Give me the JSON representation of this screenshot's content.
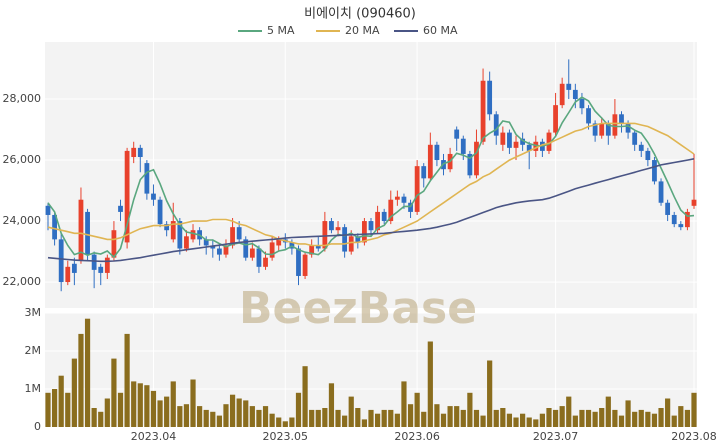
{
  "chart_data": [
    {
      "type": "candlestick",
      "title": "비에이치 (090460)",
      "watermark": "BeezBase",
      "up_color": "#e8412c",
      "down_color": "#2f6ec2",
      "open": [
        24500,
        24200,
        23400,
        22000,
        22600,
        22700,
        24300,
        22900,
        22500,
        22300,
        22800,
        24500,
        23300,
        26100,
        26400,
        25900,
        24900,
        24700,
        23900,
        23400,
        24000,
        23100,
        23400,
        23700,
        23400,
        23200,
        23100,
        22900,
        23200,
        23800,
        23400,
        22800,
        23100,
        22500,
        22800,
        23200,
        23400,
        23300,
        23100,
        22200,
        22900,
        23200,
        23100,
        24000,
        23700,
        23800,
        23000,
        23500,
        23300,
        24000,
        23700,
        24300,
        24000,
        24700,
        24800,
        24600,
        24300,
        25800,
        25400,
        26500,
        26000,
        25700,
        27000,
        26700,
        26200,
        25500,
        26600,
        28600,
        27500,
        26500,
        26900,
        26400,
        26700,
        26500,
        26300,
        26600,
        26300,
        26900,
        27800,
        28500,
        28300,
        28000,
        27700,
        27200,
        26800,
        27200,
        26800,
        27500,
        27200,
        26900,
        26500,
        26300,
        26000,
        25300,
        24600,
        24200,
        23900,
        23800,
        24500
      ],
      "high": [
        24600,
        24300,
        23600,
        22700,
        22800,
        25100,
        24400,
        23000,
        22600,
        22900,
        24000,
        24700,
        26400,
        26600,
        26500,
        26000,
        25200,
        24800,
        24000,
        24600,
        24100,
        23700,
        23900,
        23800,
        23500,
        23400,
        23200,
        23400,
        24100,
        24000,
        23500,
        23300,
        23200,
        23000,
        23500,
        23500,
        23600,
        23400,
        23200,
        23000,
        23400,
        23500,
        24300,
        24100,
        24000,
        23900,
        23700,
        23600,
        24100,
        24100,
        24500,
        24400,
        25000,
        25000,
        24900,
        24700,
        26000,
        25900,
        26900,
        26600,
        26200,
        26400,
        27100,
        26800,
        26300,
        27000,
        29000,
        28900,
        27600,
        27100,
        27000,
        26800,
        26900,
        26600,
        26800,
        26700,
        27000,
        28200,
        28700,
        29300,
        28500,
        28200,
        27800,
        27300,
        27400,
        27300,
        28000,
        27600,
        27300,
        27000,
        26600,
        26400,
        26100,
        25400,
        24700,
        24300,
        24000,
        24400,
        26200
      ],
      "low": [
        23700,
        23200,
        21700,
        21900,
        21900,
        22600,
        22700,
        21800,
        21900,
        22100,
        22700,
        24000,
        23100,
        25900,
        25600,
        24700,
        24500,
        23800,
        23500,
        23300,
        22900,
        23000,
        23300,
        23200,
        22900,
        22800,
        22700,
        22800,
        23100,
        23300,
        22700,
        22700,
        22300,
        22400,
        22700,
        23000,
        23100,
        22900,
        21900,
        22100,
        22800,
        23000,
        23000,
        23600,
        23500,
        22800,
        22900,
        23100,
        23200,
        23500,
        23600,
        23900,
        23900,
        24500,
        24400,
        24100,
        24200,
        25100,
        25300,
        25800,
        25500,
        25600,
        26300,
        26000,
        25400,
        25400,
        26500,
        27300,
        26500,
        26300,
        26200,
        26000,
        26300,
        25700,
        26100,
        26100,
        26200,
        26800,
        27700,
        28000,
        27700,
        27500,
        27000,
        26600,
        26700,
        26500,
        26700,
        26900,
        26700,
        26300,
        26100,
        25800,
        25200,
        24500,
        24000,
        23800,
        23700,
        23700,
        24400
      ],
      "close": [
        24200,
        23400,
        22000,
        22500,
        22300,
        24700,
        22900,
        22400,
        22300,
        22800,
        23700,
        24300,
        26300,
        26400,
        26100,
        24900,
        24700,
        23900,
        23700,
        24000,
        23100,
        23500,
        23700,
        23400,
        23200,
        23100,
        22900,
        23200,
        23800,
        23400,
        22800,
        23100,
        22500,
        22800,
        23300,
        23400,
        23300,
        23100,
        22200,
        22900,
        23200,
        23100,
        24000,
        23700,
        23800,
        23000,
        23500,
        23300,
        24000,
        23700,
        24300,
        24000,
        24700,
        24800,
        24600,
        24300,
        25800,
        25400,
        26500,
        26000,
        25700,
        26200,
        26700,
        26200,
        25500,
        26600,
        28600,
        27500,
        26800,
        26900,
        26400,
        26600,
        26500,
        26300,
        26600,
        26300,
        26900,
        27800,
        28500,
        28300,
        28000,
        27700,
        27200,
        26800,
        27200,
        26800,
        27500,
        27200,
        26900,
        26500,
        26300,
        26000,
        25300,
        24600,
        24200,
        23900,
        23800,
        24300,
        24700
      ],
      "series": [
        {
          "name": "5 MA",
          "color": "#5aa77f",
          "values": [
            24600,
            24300,
            23600,
            23200,
            22900,
            22980,
            22880,
            22960,
            22920,
            23020,
            22820,
            23100,
            23880,
            24700,
            25360,
            25600,
            25680,
            25220,
            24660,
            24240,
            23880,
            23640,
            23600,
            23540,
            23380,
            23380,
            23260,
            23160,
            23240,
            23280,
            23220,
            23260,
            23120,
            22920,
            22900,
            23020,
            23060,
            23180,
            23060,
            22980,
            22940,
            22900,
            23080,
            23380,
            23560,
            23520,
            23600,
            23460,
            23520,
            23500,
            23760,
            23860,
            24140,
            24300,
            24480,
            24480,
            24840,
            24980,
            25320,
            25600,
            25880,
            25960,
            26220,
            26160,
            26060,
            26240,
            26720,
            26880,
            27000,
            27280,
            27240,
            26840,
            26640,
            26540,
            26480,
            26460,
            26520,
            26780,
            27220,
            27560,
            27900,
            28060,
            27940,
            27600,
            27380,
            27140,
            27100,
            27100,
            27120,
            26980,
            26880,
            26580,
            26200,
            25740,
            25280,
            24800,
            24360,
            24160,
            24180
          ]
        },
        {
          "name": "20 MA",
          "color": "#e0b552",
          "values": [
            23800,
            23750,
            23700,
            23650,
            23600,
            23600,
            23550,
            23500,
            23450,
            23400,
            23400,
            23450,
            23550,
            23650,
            23750,
            23800,
            23850,
            23850,
            23850,
            23900,
            23900,
            23950,
            24000,
            24000,
            24000,
            24050,
            24050,
            24050,
            24000,
            23900,
            23850,
            23750,
            23650,
            23550,
            23500,
            23400,
            23350,
            23300,
            23250,
            23250,
            23200,
            23200,
            23200,
            23250,
            23250,
            23250,
            23300,
            23300,
            23350,
            23400,
            23450,
            23550,
            23600,
            23700,
            23800,
            23900,
            24000,
            24150,
            24300,
            24450,
            24600,
            24750,
            24900,
            25050,
            25200,
            25300,
            25450,
            25550,
            25700,
            25850,
            26000,
            26100,
            26200,
            26300,
            26400,
            26500,
            26550,
            26650,
            26750,
            26850,
            26950,
            27000,
            27100,
            27150,
            27200,
            27200,
            27200,
            27200,
            27200,
            27200,
            27150,
            27100,
            27000,
            26900,
            26800,
            26650,
            26500,
            26350,
            26200
          ]
        },
        {
          "name": "60 MA",
          "color": "#4a5585",
          "values": [
            22800,
            22780,
            22760,
            22740,
            22720,
            22710,
            22700,
            22690,
            22680,
            22680,
            22690,
            22710,
            22740,
            22770,
            22800,
            22840,
            22880,
            22920,
            22960,
            23000,
            23030,
            23060,
            23090,
            23120,
            23150,
            23180,
            23210,
            23240,
            23270,
            23300,
            23320,
            23340,
            23360,
            23380,
            23400,
            23420,
            23440,
            23460,
            23470,
            23480,
            23490,
            23500,
            23510,
            23520,
            23530,
            23540,
            23550,
            23560,
            23570,
            23580,
            23590,
            23600,
            23620,
            23640,
            23660,
            23680,
            23700,
            23730,
            23760,
            23800,
            23850,
            23900,
            23960,
            24040,
            24120,
            24200,
            24280,
            24360,
            24440,
            24500,
            24550,
            24600,
            24630,
            24660,
            24680,
            24700,
            24750,
            24820,
            24900,
            24980,
            25060,
            25120,
            25180,
            25240,
            25300,
            25360,
            25420,
            25480,
            25540,
            25600,
            25660,
            25720,
            25780,
            25840,
            25880,
            25920,
            25960,
            26000,
            26040
          ]
        }
      ],
      "ylim": [
        21150,
        29870
      ],
      "yticks": [
        {
          "value": 22000,
          "label": "22,000"
        },
        {
          "value": 24000,
          "label": "24,000"
        },
        {
          "value": 26000,
          "label": "26,000"
        },
        {
          "value": 28000,
          "label": "28,000"
        }
      ],
      "grid": true
    },
    {
      "type": "bar",
      "color": "#8a6d1e",
      "categories": [
        null,
        null,
        null,
        null,
        null,
        null,
        null,
        null,
        null,
        null,
        null,
        null,
        null,
        null,
        null,
        null,
        "2023.04",
        null,
        null,
        null,
        null,
        null,
        null,
        null,
        null,
        null,
        null,
        null,
        null,
        null,
        null,
        null,
        null,
        null,
        null,
        null,
        "2023.05",
        null,
        null,
        null,
        null,
        null,
        null,
        null,
        null,
        null,
        null,
        null,
        null,
        null,
        null,
        null,
        null,
        null,
        null,
        null,
        "2023.06",
        null,
        null,
        null,
        null,
        null,
        null,
        null,
        null,
        null,
        null,
        null,
        null,
        null,
        null,
        null,
        null,
        null,
        null,
        null,
        null,
        "2023.07",
        null,
        null,
        null,
        null,
        null,
        null,
        null,
        null,
        null,
        null,
        null,
        null,
        null,
        null,
        null,
        null,
        null,
        null,
        null,
        null,
        "2023.08"
      ],
      "values": [
        900000,
        1000000,
        1350000,
        900000,
        1800000,
        2450000,
        2850000,
        500000,
        400000,
        750000,
        1800000,
        900000,
        2450000,
        1200000,
        1150000,
        1100000,
        950000,
        700000,
        800000,
        1200000,
        550000,
        600000,
        1250000,
        550000,
        450000,
        400000,
        300000,
        600000,
        850000,
        750000,
        700000,
        550000,
        450000,
        550000,
        350000,
        250000,
        150000,
        250000,
        900000,
        1600000,
        450000,
        450000,
        500000,
        1150000,
        450000,
        300000,
        800000,
        500000,
        200000,
        450000,
        350000,
        450000,
        450000,
        350000,
        1200000,
        600000,
        900000,
        400000,
        2250000,
        600000,
        350000,
        550000,
        550000,
        450000,
        900000,
        450000,
        300000,
        1750000,
        450000,
        500000,
        350000,
        250000,
        350000,
        250000,
        200000,
        350000,
        500000,
        450000,
        550000,
        800000,
        300000,
        450000,
        450000,
        400000,
        500000,
        800000,
        450000,
        300000,
        700000,
        400000,
        450000,
        400000,
        350000,
        500000,
        750000,
        300000,
        550000,
        450000,
        900000
      ],
      "ylim": [
        0,
        3000000
      ],
      "yticks": [
        0,
        {
          "value": 1000000,
          "label": "1M"
        },
        {
          "value": 2000000,
          "label": "2M"
        },
        {
          "value": 3000000,
          "label": "3M"
        }
      ],
      "grid": true
    }
  ]
}
